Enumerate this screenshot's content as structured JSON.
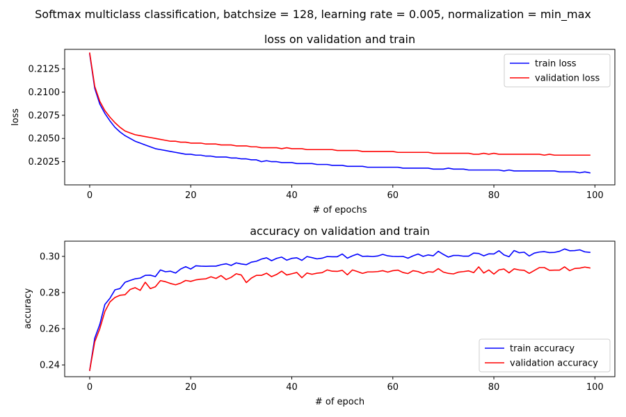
{
  "figure": {
    "suptitle": "Softmax multiclass classification, batchsize = 128, learning rate = 0.005, normalization = min_max"
  },
  "chart_data": [
    {
      "type": "line",
      "title": "loss on validation and train",
      "xlabel": "# of epochs",
      "ylabel": "loss",
      "xlim": [
        -4.95,
        103.95
      ],
      "ylim": [
        0.2,
        0.2146
      ],
      "xticks": [
        0,
        20,
        40,
        60,
        80,
        100
      ],
      "xtick_labels": [
        "0",
        "20",
        "40",
        "60",
        "80",
        "100"
      ],
      "yticks": [
        0.2025,
        0.205,
        0.2075,
        0.21,
        0.2125
      ],
      "ytick_labels": [
        "0.2025",
        "0.2050",
        "0.2075",
        "0.2100",
        "0.2125"
      ],
      "legend_position": "upper right",
      "grid": false,
      "series": [
        {
          "name": "train loss",
          "color": "#0000ff",
          "x": [
            0,
            1,
            2,
            3,
            4,
            5,
            6,
            7,
            8,
            9,
            10,
            11,
            12,
            13,
            14,
            15,
            16,
            17,
            18,
            19,
            20,
            21,
            22,
            23,
            24,
            25,
            26,
            27,
            28,
            29,
            30,
            31,
            32,
            33,
            34,
            35,
            36,
            37,
            38,
            39,
            40,
            41,
            42,
            43,
            44,
            45,
            46,
            47,
            48,
            49,
            50,
            51,
            52,
            53,
            54,
            55,
            56,
            57,
            58,
            59,
            60,
            61,
            62,
            63,
            64,
            65,
            66,
            67,
            68,
            69,
            70,
            71,
            72,
            73,
            74,
            75,
            76,
            77,
            78,
            79,
            80,
            81,
            82,
            83,
            84,
            85,
            86,
            87,
            88,
            89,
            90,
            91,
            92,
            93,
            94,
            95,
            96,
            97,
            98,
            99
          ],
          "values": [
            0.2141,
            0.2104,
            0.2087,
            0.2077,
            0.2069,
            0.2062,
            0.2057,
            0.2053,
            0.205,
            0.2047,
            0.2045,
            0.2043,
            0.2041,
            0.2039,
            0.2038,
            0.2037,
            0.2036,
            0.2035,
            0.2034,
            0.2033,
            0.2033,
            0.2032,
            0.2032,
            0.2031,
            0.2031,
            0.203,
            0.203,
            0.203,
            0.2029,
            0.2029,
            0.2028,
            0.2028,
            0.2027,
            0.2027,
            0.2025,
            0.2026,
            0.2025,
            0.2025,
            0.2024,
            0.2024,
            0.2024,
            0.2023,
            0.2023,
            0.2023,
            0.2023,
            0.2022,
            0.2022,
            0.2022,
            0.2021,
            0.2021,
            0.2021,
            0.202,
            0.202,
            0.202,
            0.202,
            0.2019,
            0.2019,
            0.2019,
            0.2019,
            0.2019,
            0.2019,
            0.2019,
            0.2018,
            0.2018,
            0.2018,
            0.2018,
            0.2018,
            0.2018,
            0.2017,
            0.2017,
            0.2017,
            0.2018,
            0.2017,
            0.2017,
            0.2017,
            0.2016,
            0.2016,
            0.2016,
            0.2016,
            0.2016,
            0.2016,
            0.2016,
            0.2015,
            0.2016,
            0.2015,
            0.2015,
            0.2015,
            0.2015,
            0.2015,
            0.2015,
            0.2015,
            0.2015,
            0.2015,
            0.2014,
            0.2014,
            0.2014,
            0.2014,
            0.2013,
            0.2014,
            0.2013
          ]
        },
        {
          "name": "validation loss",
          "color": "#ff0000",
          "x": [
            0,
            1,
            2,
            3,
            4,
            5,
            6,
            7,
            8,
            9,
            10,
            11,
            12,
            13,
            14,
            15,
            16,
            17,
            18,
            19,
            20,
            21,
            22,
            23,
            24,
            25,
            26,
            27,
            28,
            29,
            30,
            31,
            32,
            33,
            34,
            35,
            36,
            37,
            38,
            39,
            40,
            41,
            42,
            43,
            44,
            45,
            46,
            47,
            48,
            49,
            50,
            51,
            52,
            53,
            54,
            55,
            56,
            57,
            58,
            59,
            60,
            61,
            62,
            63,
            64,
            65,
            66,
            67,
            68,
            69,
            70,
            71,
            72,
            73,
            74,
            75,
            76,
            77,
            78,
            79,
            80,
            81,
            82,
            83,
            84,
            85,
            86,
            87,
            88,
            89,
            90,
            91,
            92,
            93,
            94,
            95,
            96,
            97,
            98,
            99
          ],
          "values": [
            0.2142,
            0.2106,
            0.209,
            0.208,
            0.2073,
            0.2067,
            0.2062,
            0.2058,
            0.2056,
            0.2054,
            0.2053,
            0.2052,
            0.2051,
            0.205,
            0.2049,
            0.2048,
            0.2047,
            0.2047,
            0.2046,
            0.2046,
            0.2045,
            0.2045,
            0.2045,
            0.2044,
            0.2044,
            0.2044,
            0.2043,
            0.2043,
            0.2043,
            0.2042,
            0.2042,
            0.2042,
            0.2041,
            0.2041,
            0.204,
            0.204,
            0.204,
            0.204,
            0.2039,
            0.204,
            0.2039,
            0.2039,
            0.2039,
            0.2038,
            0.2038,
            0.2038,
            0.2038,
            0.2038,
            0.2038,
            0.2037,
            0.2037,
            0.2037,
            0.2037,
            0.2037,
            0.2036,
            0.2036,
            0.2036,
            0.2036,
            0.2036,
            0.2036,
            0.2036,
            0.2035,
            0.2035,
            0.2035,
            0.2035,
            0.2035,
            0.2035,
            0.2035,
            0.2034,
            0.2034,
            0.2034,
            0.2034,
            0.2034,
            0.2034,
            0.2034,
            0.2034,
            0.2033,
            0.2033,
            0.2034,
            0.2033,
            0.2034,
            0.2033,
            0.2033,
            0.2033,
            0.2033,
            0.2033,
            0.2033,
            0.2033,
            0.2033,
            0.2033,
            0.2032,
            0.2033,
            0.2032,
            0.2032,
            0.2032,
            0.2032,
            0.2032,
            0.2032,
            0.2032,
            0.2032
          ]
        }
      ]
    },
    {
      "type": "line",
      "title": "accuracy on validation and train",
      "xlabel": "# of epoch",
      "ylabel": "accuracy",
      "xlim": [
        -4.95,
        103.95
      ],
      "ylim": [
        0.2335,
        0.3084
      ],
      "xticks": [
        0,
        20,
        40,
        60,
        80,
        100
      ],
      "xtick_labels": [
        "0",
        "20",
        "40",
        "60",
        "80",
        "100"
      ],
      "yticks": [
        0.24,
        0.26,
        0.28,
        0.3
      ],
      "ytick_labels": [
        "0.24",
        "0.26",
        "0.28",
        "0.30"
      ],
      "legend_position": "lower right",
      "grid": false,
      "series": [
        {
          "name": "train accuracy",
          "color": "#0000ff",
          "x": [
            0,
            1,
            2,
            3,
            4,
            5,
            6,
            7,
            8,
            9,
            10,
            11,
            12,
            13,
            14,
            15,
            16,
            17,
            18,
            19,
            20,
            21,
            22,
            23,
            24,
            25,
            26,
            27,
            28,
            29,
            30,
            31,
            32,
            33,
            34,
            35,
            36,
            37,
            38,
            39,
            40,
            41,
            42,
            43,
            44,
            45,
            46,
            47,
            48,
            49,
            50,
            51,
            52,
            53,
            54,
            55,
            56,
            57,
            58,
            59,
            60,
            61,
            62,
            63,
            64,
            65,
            66,
            67,
            68,
            69,
            70,
            71,
            72,
            73,
            74,
            75,
            76,
            77,
            78,
            79,
            80,
            81,
            82,
            83,
            84,
            85,
            86,
            87,
            88,
            89,
            90,
            91,
            92,
            93,
            94,
            95,
            96,
            97,
            98,
            99
          ],
          "values": [
            0.237,
            0.2548,
            0.2624,
            0.2734,
            0.2768,
            0.2815,
            0.2822,
            0.2857,
            0.2867,
            0.2876,
            0.288,
            0.2895,
            0.2896,
            0.2888,
            0.2925,
            0.2915,
            0.2918,
            0.2908,
            0.293,
            0.2943,
            0.293,
            0.2948,
            0.2946,
            0.2945,
            0.2946,
            0.2946,
            0.2954,
            0.2959,
            0.295,
            0.2964,
            0.2958,
            0.2954,
            0.2968,
            0.2973,
            0.2985,
            0.2992,
            0.2976,
            0.2989,
            0.2996,
            0.2979,
            0.2989,
            0.2992,
            0.2978,
            0.2999,
            0.2993,
            0.2986,
            0.299,
            0.2999,
            0.2998,
            0.2998,
            0.3013,
            0.299,
            0.3003,
            0.3013,
            0.3,
            0.3001,
            0.2999,
            0.3002,
            0.3011,
            0.3003,
            0.3,
            0.2999,
            0.3,
            0.299,
            0.3003,
            0.3013,
            0.3,
            0.3008,
            0.3003,
            0.3028,
            0.3011,
            0.2996,
            0.3005,
            0.3005,
            0.3001,
            0.3001,
            0.3018,
            0.3016,
            0.3003,
            0.3014,
            0.3013,
            0.3031,
            0.3008,
            0.2998,
            0.3032,
            0.302,
            0.3023,
            0.3002,
            0.3018,
            0.3024,
            0.3026,
            0.3021,
            0.3022,
            0.3028,
            0.3041,
            0.3031,
            0.3032,
            0.3036,
            0.3025,
            0.3022
          ]
        },
        {
          "name": "validation accuracy",
          "color": "#ff0000",
          "x": [
            0,
            1,
            2,
            3,
            4,
            5,
            6,
            7,
            8,
            9,
            10,
            11,
            12,
            13,
            14,
            15,
            16,
            17,
            18,
            19,
            20,
            21,
            22,
            23,
            24,
            25,
            26,
            27,
            28,
            29,
            30,
            31,
            32,
            33,
            34,
            35,
            36,
            37,
            38,
            39,
            40,
            41,
            42,
            43,
            44,
            45,
            46,
            47,
            48,
            49,
            50,
            51,
            52,
            53,
            54,
            55,
            56,
            57,
            58,
            59,
            60,
            61,
            62,
            63,
            64,
            65,
            66,
            67,
            68,
            69,
            70,
            71,
            72,
            73,
            74,
            75,
            76,
            77,
            78,
            79,
            80,
            81,
            82,
            83,
            84,
            85,
            86,
            87,
            88,
            89,
            90,
            91,
            92,
            93,
            94,
            95,
            96,
            97,
            98,
            99
          ],
          "values": [
            0.237,
            0.2528,
            0.26,
            0.2695,
            0.2748,
            0.2773,
            0.2785,
            0.2788,
            0.2817,
            0.2827,
            0.2812,
            0.2857,
            0.2822,
            0.2832,
            0.2866,
            0.286,
            0.285,
            0.2843,
            0.2852,
            0.2867,
            0.2862,
            0.287,
            0.2874,
            0.2876,
            0.2887,
            0.2878,
            0.2894,
            0.2872,
            0.2884,
            0.2904,
            0.2897,
            0.2855,
            0.288,
            0.2895,
            0.2895,
            0.2907,
            0.2888,
            0.29,
            0.2918,
            0.2897,
            0.2904,
            0.2911,
            0.2882,
            0.2908,
            0.2901,
            0.2907,
            0.291,
            0.2925,
            0.2918,
            0.2917,
            0.2923,
            0.2898,
            0.2925,
            0.2916,
            0.2906,
            0.2914,
            0.2914,
            0.2916,
            0.2921,
            0.2913,
            0.2921,
            0.2924,
            0.2911,
            0.2905,
            0.2921,
            0.2916,
            0.2905,
            0.2915,
            0.2913,
            0.2932,
            0.2913,
            0.2906,
            0.2903,
            0.2913,
            0.2916,
            0.292,
            0.291,
            0.2942,
            0.2908,
            0.2925,
            0.2902,
            0.2925,
            0.293,
            0.2909,
            0.2931,
            0.2925,
            0.2923,
            0.2906,
            0.2922,
            0.2938,
            0.2938,
            0.2923,
            0.2924,
            0.2924,
            0.2942,
            0.2921,
            0.2933,
            0.2935,
            0.2941,
            0.2936
          ]
        }
      ]
    }
  ]
}
